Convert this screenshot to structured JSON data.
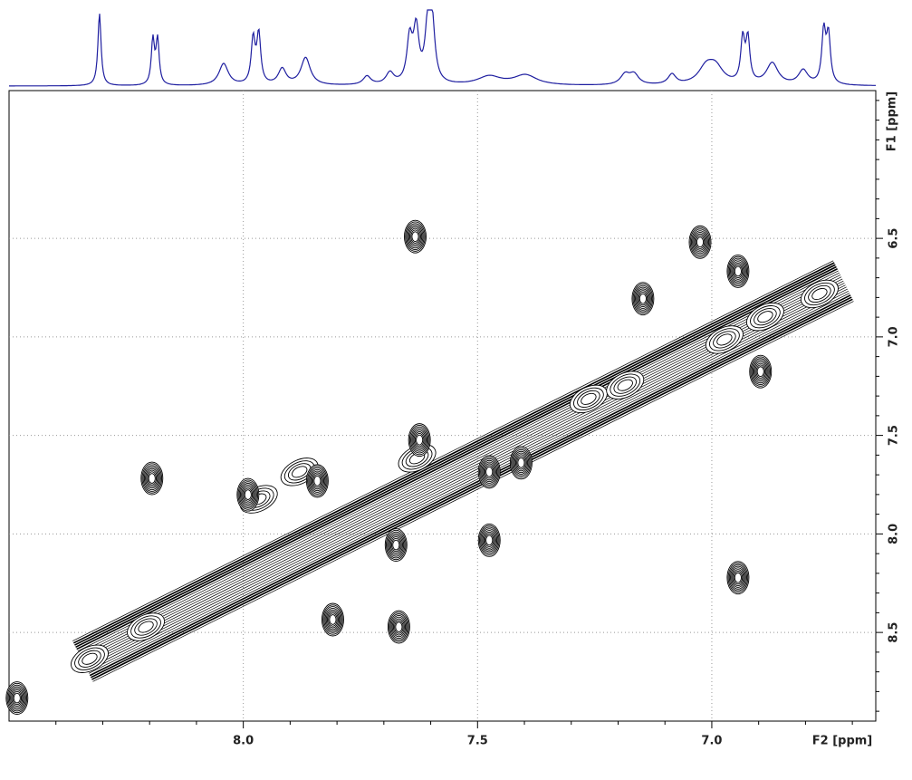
{
  "chart_data": {
    "type": "contour2d",
    "x_label": "F2 [ppm]",
    "y_label": "F1 [ppm]",
    "xlim": [
      8.5,
      6.65
    ],
    "ylim": [
      5.75,
      8.95
    ],
    "xticks": [
      {
        "value": 8,
        "label": "8.0"
      },
      7.5,
      {
        "value": 7,
        "label": "7.0"
      }
    ],
    "yticks": [
      6.5,
      {
        "value": 7,
        "label": "7.0"
      },
      7.5,
      {
        "value": 8,
        "label": "8.0"
      },
      8.5
    ],
    "xminorticks": [
      8.4,
      8.3,
      8.2,
      8.1,
      7.9,
      7.8,
      7.7,
      7.6,
      7.4,
      7.3,
      7.2,
      7.1,
      6.9,
      6.8,
      6.7
    ],
    "yminorticks": [
      5.8,
      5.9,
      6.0,
      6.1,
      6.2,
      6.3,
      6.4,
      6.6,
      6.7,
      6.8,
      6.9,
      7.1,
      7.2,
      7.3,
      7.4,
      7.6,
      7.7,
      7.8,
      7.9,
      8.1,
      8.2,
      8.3,
      8.4,
      8.6,
      8.7,
      8.8,
      8.9
    ],
    "grid": true,
    "projection": {
      "color": "#1f1fa0",
      "x": [
        8.307,
        8.193,
        8.183,
        8.042,
        7.979,
        7.967,
        7.917,
        7.867,
        7.736,
        7.687,
        7.645,
        7.631,
        7.606,
        7.597,
        7.475,
        7.398,
        7.185,
        7.166,
        7.085,
        7.012,
        6.992,
        6.934,
        6.923,
        6.871,
        6.805,
        6.761,
        6.751
      ],
      "values": [
        1.0,
        0.62,
        0.62,
        0.3,
        0.62,
        0.68,
        0.22,
        0.38,
        0.12,
        0.16,
        0.6,
        0.72,
        0.75,
        0.78,
        0.12,
        0.14,
        0.14,
        0.14,
        0.14,
        0.22,
        0.22,
        0.6,
        0.6,
        0.3,
        0.2,
        0.72,
        0.66
      ],
      "width": [
        0.004,
        0.004,
        0.004,
        0.012,
        0.005,
        0.005,
        0.01,
        0.012,
        0.01,
        0.01,
        0.007,
        0.007,
        0.007,
        0.007,
        0.03,
        0.03,
        0.012,
        0.012,
        0.01,
        0.02,
        0.02,
        0.005,
        0.005,
        0.015,
        0.012,
        0.005,
        0.005
      ]
    },
    "diagonal_peaks": {
      "x": [
        8.328,
        8.208,
        7.967,
        7.88,
        7.629,
        7.263,
        7.185,
        6.973,
        6.886,
        6.77
      ],
      "y": [
        8.634,
        8.472,
        7.824,
        7.685,
        7.616,
        7.315,
        7.245,
        7.014,
        6.898,
        6.782
      ]
    },
    "cross_peaks": {
      "x": [
        8.195,
        7.99,
        7.025,
        7.147,
        6.944,
        6.896,
        7.674,
        7.668,
        7.624,
        7.475,
        7.407,
        6.944,
        7.842,
        7.475,
        7.809,
        7.633,
        8.483
      ],
      "y": [
        7.718,
        7.801,
        6.519,
        6.806,
        6.667,
        7.176,
        8.056,
        8.472,
        7.523,
        7.685,
        7.639,
        8.222,
        7.731,
        8.032,
        8.435,
        6.491,
        8.833
      ]
    }
  }
}
